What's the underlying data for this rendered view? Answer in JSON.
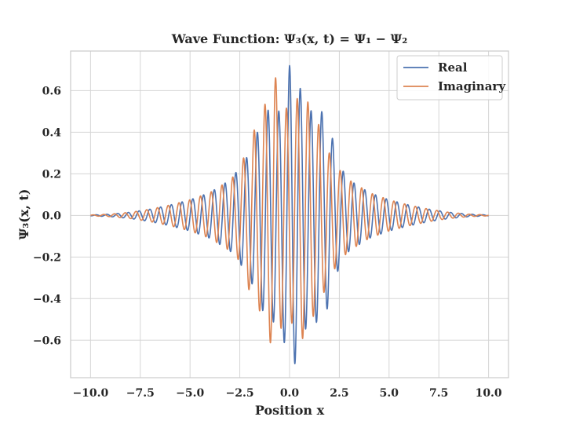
{
  "chart_data": {
    "type": "line",
    "title": "Wave Function: Ψ₃(x, t) = Ψ₁ − Ψ₂",
    "xlabel": "Position x",
    "ylabel": "Ψ₃(x, t)",
    "xlim": [
      -11.0,
      11.0
    ],
    "ylim": [
      -0.78,
      0.79
    ],
    "x_ticks": [
      -10.0,
      -7.5,
      -5.0,
      -2.5,
      0.0,
      2.5,
      5.0,
      7.5,
      10.0
    ],
    "x_tick_labels": [
      "−10.0",
      "−7.5",
      "−5.0",
      "−2.5",
      "0.0",
      "2.5",
      "5.0",
      "7.5",
      "10.0"
    ],
    "y_ticks": [
      -0.6,
      -0.4,
      -0.2,
      0.0,
      0.2,
      0.4,
      0.6
    ],
    "y_tick_labels": [
      "−0.6",
      "−0.4",
      "−0.2",
      "0.0",
      "0.2",
      "0.4",
      "0.6"
    ],
    "grid": true,
    "legend_position": "top-right",
    "x_range": [
      -10,
      10
    ],
    "series": [
      {
        "name": "Real",
        "color": "#4c72b0",
        "x": [
          -10.0,
          -9.0,
          -8.0,
          -7.0,
          -6.0,
          -5.0,
          -4.0,
          -3.0,
          -2.5,
          -2.0,
          -1.5,
          -1.0,
          -0.5,
          -0.25,
          0.0,
          0.25,
          0.5,
          1.0,
          1.5,
          2.0,
          2.5,
          3.0,
          4.0,
          5.0,
          6.0,
          7.0,
          8.0,
          9.0,
          10.0
        ],
        "envelope": [
          0.002,
          0.006,
          0.015,
          0.03,
          0.05,
          0.075,
          0.11,
          0.17,
          0.23,
          0.3,
          0.43,
          0.52,
          0.5,
          0.62,
          0.72,
          0.72,
          0.62,
          0.5,
          0.52,
          0.43,
          0.24,
          0.17,
          0.11,
          0.075,
          0.05,
          0.03,
          0.015,
          0.006,
          0.002
        ]
      },
      {
        "name": "Imaginary",
        "color": "#dd8452",
        "x": [
          -10.0,
          -9.0,
          -8.0,
          -7.0,
          -6.0,
          -5.0,
          -4.0,
          -3.0,
          -2.5,
          -2.0,
          -1.5,
          -1.0,
          -0.75,
          -0.5,
          0.0,
          0.5,
          0.75,
          1.0,
          1.5,
          2.0,
          2.5,
          3.0,
          4.0,
          5.0,
          6.0,
          7.0,
          8.0,
          9.0,
          10.0
        ],
        "envelope": [
          0.002,
          0.006,
          0.015,
          0.03,
          0.05,
          0.075,
          0.11,
          0.17,
          0.22,
          0.37,
          0.46,
          0.6,
          0.69,
          0.55,
          0.5,
          0.58,
          0.6,
          0.52,
          0.43,
          0.3,
          0.22,
          0.17,
          0.11,
          0.075,
          0.05,
          0.03,
          0.015,
          0.006,
          0.002
        ]
      }
    ]
  }
}
